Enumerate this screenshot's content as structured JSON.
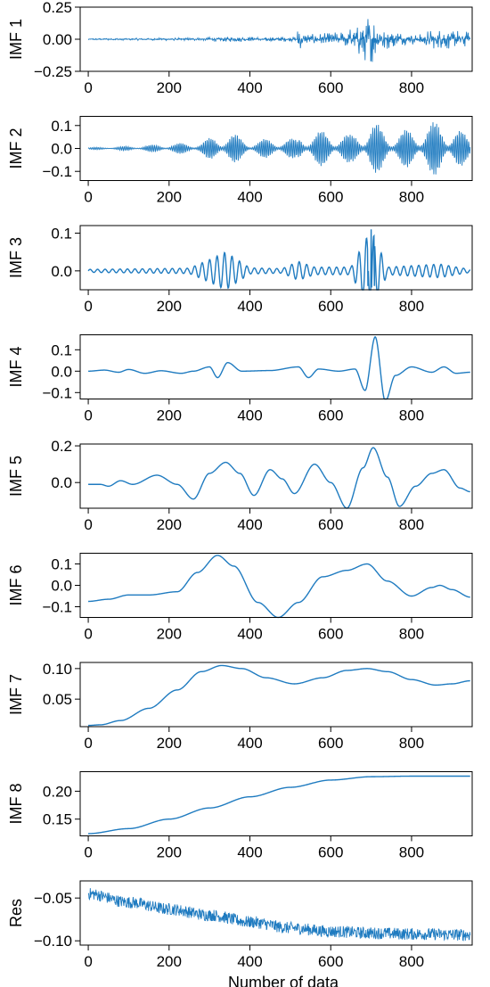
{
  "colors": {
    "line": "#1f7bc0",
    "axis": "#000000"
  },
  "chart_data": [
    {
      "type": "line",
      "ylabel": "IMF 1",
      "xlim": [
        -20,
        950
      ],
      "ylim": [
        -0.25,
        0.25
      ],
      "xticks": [
        0,
        200,
        400,
        600,
        800
      ],
      "xtick_labels": [
        "0",
        "200",
        "400",
        "600",
        "800"
      ],
      "yticks": [
        -0.25,
        0,
        0.25
      ],
      "ytick_labels": [
        "−0.25",
        "0.00",
        "0.25"
      ],
      "grid": false,
      "n_points": 946,
      "signal": "high-frequency noise, bursts near 520 and 650-900",
      "envelope": [
        [
          0,
          0.006
        ],
        [
          270,
          0.012
        ],
        [
          330,
          0.02
        ],
        [
          515,
          0.02
        ],
        [
          522,
          0.16
        ],
        [
          530,
          0.04
        ],
        [
          600,
          0.05
        ],
        [
          660,
          0.1
        ],
        [
          695,
          0.22
        ],
        [
          740,
          0.08
        ],
        [
          800,
          0.04
        ],
        [
          870,
          0.09
        ],
        [
          945,
          0.06
        ]
      ]
    },
    {
      "type": "line",
      "ylabel": "IMF 2",
      "xlim": [
        -20,
        950
      ],
      "ylim": [
        -0.14,
        0.14
      ],
      "xticks": [
        0,
        200,
        400,
        600,
        800
      ],
      "xtick_labels": [
        "0",
        "200",
        "400",
        "600",
        "800"
      ],
      "yticks": [
        -0.1,
        0,
        0.1
      ],
      "ytick_labels": [
        "−0.1",
        "0.0",
        "0.1"
      ],
      "grid": false,
      "n_points": 946,
      "signal": "oscillation with growing amplitude",
      "envelope": [
        [
          0,
          0.004
        ],
        [
          100,
          0.01
        ],
        [
          200,
          0.02
        ],
        [
          280,
          0.03
        ],
        [
          340,
          0.08
        ],
        [
          400,
          0.035
        ],
        [
          480,
          0.05
        ],
        [
          518,
          0.04
        ],
        [
          522,
          0.07
        ],
        [
          600,
          0.08
        ],
        [
          650,
          0.06
        ],
        [
          700,
          0.12
        ],
        [
          760,
          0.07
        ],
        [
          880,
          0.13
        ],
        [
          945,
          0.05
        ]
      ]
    },
    {
      "type": "line",
      "ylabel": "IMF 3",
      "xlim": [
        -20,
        950
      ],
      "ylim": [
        -0.05,
        0.12
      ],
      "xticks": [
        0,
        200,
        400,
        600,
        800
      ],
      "xtick_labels": [
        "0",
        "200",
        "400",
        "600",
        "800"
      ],
      "yticks": [
        0,
        0.1
      ],
      "ytick_labels": [
        "0.0",
        "0.1"
      ],
      "grid": false,
      "n_points": 946,
      "signal": "oscillation, wave packets near 340, 520 and 700",
      "envelope": [
        [
          0,
          0.004
        ],
        [
          250,
          0.007
        ],
        [
          300,
          0.03
        ],
        [
          340,
          0.05
        ],
        [
          400,
          0.008
        ],
        [
          480,
          0.006
        ],
        [
          520,
          0.025
        ],
        [
          560,
          0.01
        ],
        [
          650,
          0.01
        ],
        [
          700,
          0.11
        ],
        [
          740,
          0.01
        ],
        [
          870,
          0.018
        ],
        [
          945,
          0.004
        ]
      ]
    },
    {
      "type": "line",
      "ylabel": "IMF 4",
      "xlim": [
        -20,
        950
      ],
      "ylim": [
        -0.13,
        0.17
      ],
      "xticks": [
        0,
        200,
        400,
        600,
        800
      ],
      "xtick_labels": [
        "0",
        "200",
        "400",
        "600",
        "800"
      ],
      "yticks": [
        -0.1,
        0,
        0.1
      ],
      "ytick_labels": [
        "−0.1",
        "0.0",
        "0.1"
      ],
      "grid": false,
      "n_points": 946,
      "signal": "slow oscillation, large swing 680-720",
      "knots": [
        [
          0,
          0
        ],
        [
          40,
          0.005
        ],
        [
          75,
          -0.005
        ],
        [
          100,
          0.008
        ],
        [
          140,
          -0.01
        ],
        [
          180,
          0.002
        ],
        [
          230,
          -0.01
        ],
        [
          260,
          0
        ],
        [
          300,
          0.02
        ],
        [
          320,
          -0.03
        ],
        [
          345,
          0.04
        ],
        [
          380,
          0
        ],
        [
          450,
          0.003
        ],
        [
          520,
          0.02
        ],
        [
          545,
          -0.03
        ],
        [
          570,
          0.01
        ],
        [
          620,
          0
        ],
        [
          660,
          0.01
        ],
        [
          685,
          -0.09
        ],
        [
          710,
          0.16
        ],
        [
          735,
          -0.14
        ],
        [
          760,
          -0.02
        ],
        [
          800,
          0.02
        ],
        [
          850,
          -0.005
        ],
        [
          880,
          0.02
        ],
        [
          910,
          -0.01
        ],
        [
          945,
          -0.005
        ]
      ]
    },
    {
      "type": "line",
      "ylabel": "IMF 5",
      "xlim": [
        -20,
        950
      ],
      "ylim": [
        -0.14,
        0.21
      ],
      "xticks": [
        0,
        200,
        400,
        600,
        800
      ],
      "xtick_labels": [
        "0",
        "200",
        "400",
        "600",
        "800"
      ],
      "yticks": [
        0,
        0.2
      ],
      "ytick_labels": [
        "0.0",
        "0.2"
      ],
      "grid": false,
      "n_points": 946,
      "signal": "slow oscillation",
      "knots": [
        [
          0,
          -0.01
        ],
        [
          30,
          -0.01
        ],
        [
          50,
          -0.02
        ],
        [
          80,
          0.01
        ],
        [
          110,
          -0.01
        ],
        [
          170,
          0.04
        ],
        [
          220,
          -0.01
        ],
        [
          260,
          -0.09
        ],
        [
          300,
          0.05
        ],
        [
          340,
          0.11
        ],
        [
          375,
          0.05
        ],
        [
          410,
          -0.07
        ],
        [
          450,
          0.07
        ],
        [
          480,
          0.02
        ],
        [
          510,
          -0.06
        ],
        [
          560,
          0.1
        ],
        [
          600,
          0
        ],
        [
          640,
          -0.14
        ],
        [
          680,
          0.08
        ],
        [
          705,
          0.19
        ],
        [
          740,
          0.03
        ],
        [
          770,
          -0.13
        ],
        [
          810,
          -0.02
        ],
        [
          850,
          0.05
        ],
        [
          880,
          0.07
        ],
        [
          920,
          -0.03
        ],
        [
          945,
          -0.05
        ]
      ]
    },
    {
      "type": "line",
      "ylabel": "IMF 6",
      "xlim": [
        -20,
        950
      ],
      "ylim": [
        -0.15,
        0.15
      ],
      "xticks": [
        0,
        200,
        400,
        600,
        800
      ],
      "xtick_labels": [
        "0",
        "200",
        "400",
        "600",
        "800"
      ],
      "yticks": [
        -0.1,
        0,
        0.1
      ],
      "ytick_labels": [
        "−0.1",
        "0.0",
        "0.1"
      ],
      "grid": false,
      "n_points": 946,
      "signal": "slow oscillation",
      "knots": [
        [
          0,
          -0.075
        ],
        [
          50,
          -0.065
        ],
        [
          100,
          -0.045
        ],
        [
          150,
          -0.045
        ],
        [
          220,
          -0.03
        ],
        [
          270,
          0.06
        ],
        [
          320,
          0.14
        ],
        [
          360,
          0.09
        ],
        [
          420,
          -0.08
        ],
        [
          470,
          -0.15
        ],
        [
          520,
          -0.08
        ],
        [
          580,
          0.04
        ],
        [
          640,
          0.07
        ],
        [
          690,
          0.1
        ],
        [
          740,
          0.02
        ],
        [
          800,
          -0.05
        ],
        [
          850,
          -0.01
        ],
        [
          870,
          0
        ],
        [
          900,
          -0.02
        ],
        [
          945,
          -0.055
        ]
      ]
    },
    {
      "type": "line",
      "ylabel": "IMF 7",
      "xlim": [
        -20,
        950
      ],
      "ylim": [
        0.005,
        0.11
      ],
      "xticks": [
        0,
        200,
        400,
        600,
        800
      ],
      "xtick_labels": [
        "0",
        "200",
        "400",
        "600",
        "800"
      ],
      "yticks": [
        0.05,
        0.1
      ],
      "ytick_labels": [
        "0.05",
        "0.10"
      ],
      "grid": false,
      "n_points": 946,
      "signal": "smooth curve",
      "knots": [
        [
          0,
          0.007
        ],
        [
          30,
          0.008
        ],
        [
          80,
          0.015
        ],
        [
          150,
          0.035
        ],
        [
          220,
          0.065
        ],
        [
          280,
          0.095
        ],
        [
          330,
          0.105
        ],
        [
          380,
          0.1
        ],
        [
          440,
          0.085
        ],
        [
          510,
          0.075
        ],
        [
          580,
          0.085
        ],
        [
          640,
          0.097
        ],
        [
          690,
          0.1
        ],
        [
          740,
          0.095
        ],
        [
          800,
          0.082
        ],
        [
          860,
          0.073
        ],
        [
          900,
          0.075
        ],
        [
          945,
          0.08
        ]
      ]
    },
    {
      "type": "line",
      "ylabel": "IMF 8",
      "xlim": [
        -20,
        950
      ],
      "ylim": [
        0.12,
        0.235
      ],
      "xticks": [
        0,
        200,
        400,
        600,
        800
      ],
      "xtick_labels": [
        "0",
        "200",
        "400",
        "600",
        "800"
      ],
      "yticks": [
        0.15,
        0.2
      ],
      "ytick_labels": [
        "0.15",
        "0.20"
      ],
      "grid": false,
      "n_points": 946,
      "signal": "smooth monotone trend",
      "knots": [
        [
          0,
          0.124
        ],
        [
          100,
          0.133
        ],
        [
          200,
          0.15
        ],
        [
          300,
          0.17
        ],
        [
          400,
          0.19
        ],
        [
          500,
          0.207
        ],
        [
          600,
          0.22
        ],
        [
          700,
          0.226
        ],
        [
          800,
          0.227
        ],
        [
          945,
          0.227
        ]
      ]
    },
    {
      "type": "line",
      "ylabel": "Res",
      "xlabel": "Number of data",
      "xlim": [
        -20,
        950
      ],
      "ylim": [
        -0.105,
        -0.03
      ],
      "xticks": [
        0,
        200,
        400,
        600,
        800
      ],
      "xtick_labels": [
        "0",
        "200",
        "400",
        "600",
        "800"
      ],
      "yticks": [
        -0.05,
        -0.1
      ],
      "ytick_labels": [
        "−0.05",
        "−0.10"
      ],
      "grid": false,
      "n_points": 946,
      "signal": "noisy decreasing trend",
      "knots": [
        [
          0,
          -0.045
        ],
        [
          100,
          -0.055
        ],
        [
          200,
          -0.063
        ],
        [
          300,
          -0.07
        ],
        [
          400,
          -0.078
        ],
        [
          500,
          -0.085
        ],
        [
          600,
          -0.089
        ],
        [
          700,
          -0.091
        ],
        [
          800,
          -0.092
        ],
        [
          945,
          -0.093
        ]
      ],
      "noise_amplitude": 0.007
    }
  ]
}
